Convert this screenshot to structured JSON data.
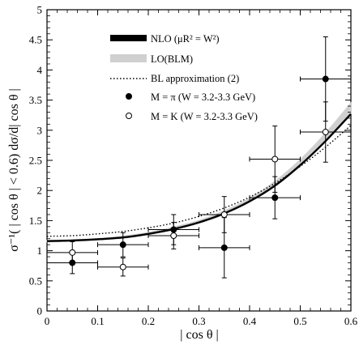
{
  "chart_data": {
    "type": "scatter",
    "xlabel": "| cos θ |",
    "ylabel": "σ⁻¹( | cos θ | < 0.6) dσ/d| cos θ |",
    "xlim": [
      0,
      0.6
    ],
    "ylim": [
      0,
      5
    ],
    "x_ticks": [
      "0",
      "0.1",
      "0.2",
      "0.3",
      "0.4",
      "0.5",
      "0.6"
    ],
    "y_ticks": [
      "0",
      "0.5",
      "1",
      "1.5",
      "2",
      "2.5",
      "3",
      "3.5",
      "4",
      "4.5",
      "5"
    ],
    "legend_position": "top-right",
    "grid": false,
    "series": [
      {
        "name": "NLO (μR² = W²)",
        "kind": "curve",
        "color": "#000000",
        "x": [
          0,
          0.05,
          0.1,
          0.15,
          0.2,
          0.25,
          0.3,
          0.35,
          0.4,
          0.45,
          0.5,
          0.55,
          0.6
        ],
        "y": [
          1.16,
          1.17,
          1.19,
          1.22,
          1.28,
          1.36,
          1.47,
          1.62,
          1.82,
          2.08,
          2.42,
          2.82,
          3.27
        ]
      },
      {
        "name": "LO(BLM)",
        "kind": "band",
        "color": "#d0d0d0",
        "x": [
          0,
          0.05,
          0.1,
          0.15,
          0.2,
          0.25,
          0.3,
          0.35,
          0.4,
          0.45,
          0.5,
          0.55,
          0.6
        ],
        "y_low": [
          1.15,
          1.16,
          1.18,
          1.21,
          1.27,
          1.35,
          1.46,
          1.61,
          1.81,
          2.07,
          2.41,
          2.82,
          3.27
        ],
        "y_high": [
          1.17,
          1.18,
          1.2,
          1.24,
          1.3,
          1.39,
          1.5,
          1.66,
          1.87,
          2.15,
          2.51,
          2.95,
          3.45
        ]
      },
      {
        "name": "BL approximation (2)",
        "kind": "dotted",
        "color": "#000000",
        "x": [
          0,
          0.05,
          0.1,
          0.15,
          0.2,
          0.25,
          0.3,
          0.35,
          0.4,
          0.45,
          0.5,
          0.55,
          0.6
        ],
        "y": [
          1.24,
          1.25,
          1.28,
          1.32,
          1.38,
          1.46,
          1.57,
          1.71,
          1.89,
          2.12,
          2.4,
          2.72,
          3.08
        ]
      },
      {
        "name": "M = π (W = 3.2-3.3 GeV)",
        "kind": "points",
        "marker": "filled",
        "points": [
          {
            "x": 0.05,
            "y": 0.8,
            "xerr": 0.05,
            "yerr": 0.18
          },
          {
            "x": 0.15,
            "y": 1.1,
            "xerr": 0.05,
            "yerr": 0.2
          },
          {
            "x": 0.25,
            "y": 1.35,
            "xerr": 0.05,
            "yerr": 0.25
          },
          {
            "x": 0.35,
            "y": 1.05,
            "xerr": 0.05,
            "yerr": 0.5
          },
          {
            "x": 0.45,
            "y": 1.88,
            "xerr": 0.05,
            "yerr": 0.35
          },
          {
            "x": 0.55,
            "y": 3.85,
            "xerr": 0.05,
            "yerr": 0.7
          }
        ]
      },
      {
        "name": "M = K (W = 3.2-3.3 GeV)",
        "kind": "points",
        "marker": "open",
        "points": [
          {
            "x": 0.05,
            "y": 0.97,
            "xerr": 0.05,
            "yerr": 0.18
          },
          {
            "x": 0.15,
            "y": 0.73,
            "xerr": 0.05,
            "yerr": 0.15
          },
          {
            "x": 0.25,
            "y": 1.25,
            "xerr": 0.05,
            "yerr": 0.22
          },
          {
            "x": 0.35,
            "y": 1.6,
            "xerr": 0.05,
            "yerr": 0.3
          },
          {
            "x": 0.45,
            "y": 2.52,
            "xerr": 0.05,
            "yerr": 0.55
          },
          {
            "x": 0.55,
            "y": 2.97,
            "xerr": 0.05,
            "yerr": 0.5
          }
        ]
      }
    ]
  }
}
